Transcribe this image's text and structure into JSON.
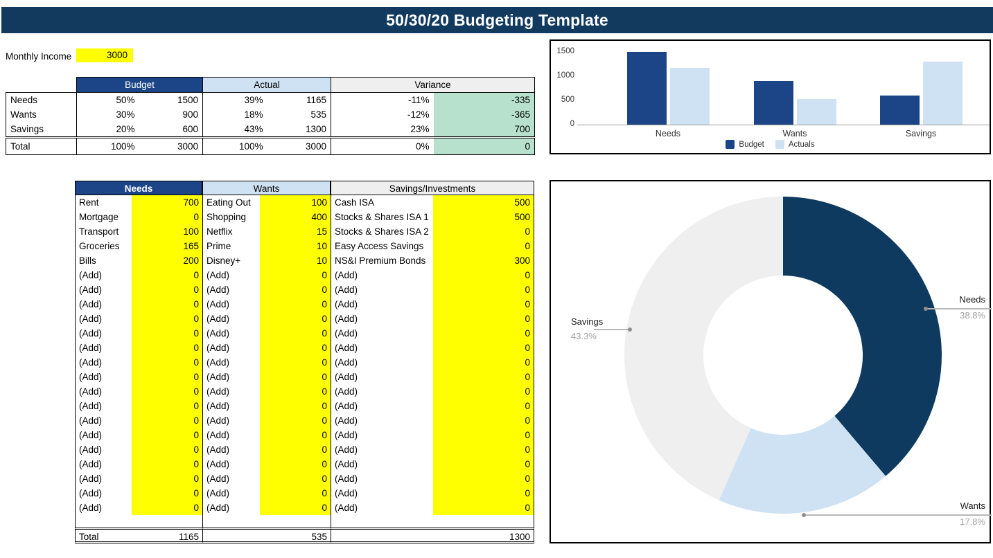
{
  "title": "50/30/20 Budgeting Template",
  "monthly_income": {
    "label": "Monthly Income",
    "value": "3000"
  },
  "summary_table": {
    "col_headers": [
      "Budget",
      "Actual",
      "Variance"
    ],
    "rows": [
      {
        "label": "Needs",
        "budget_pct": "50%",
        "budget_val": "1500",
        "actual_pct": "39%",
        "actual_val": "1165",
        "variance_pct": "-11%",
        "variance_val": "-335"
      },
      {
        "label": "Wants",
        "budget_pct": "30%",
        "budget_val": "900",
        "actual_pct": "18%",
        "actual_val": "535",
        "variance_pct": "-12%",
        "variance_val": "-365"
      },
      {
        "label": "Savings",
        "budget_pct": "20%",
        "budget_val": "600",
        "actual_pct": "43%",
        "actual_val": "1300",
        "variance_pct": "23%",
        "variance_val": "700"
      }
    ],
    "total": {
      "label": "Total",
      "budget_pct": "100%",
      "budget_val": "3000",
      "actual_pct": "100%",
      "actual_val": "3000",
      "variance_pct": "0%",
      "variance_val": "0"
    }
  },
  "detail_table": {
    "add_placeholder": "(Add)",
    "add_value": "0",
    "add_rows": 17,
    "total_label": "Total",
    "sections": [
      {
        "header": "Needs",
        "style": "navy",
        "items": [
          [
            "Rent",
            "700"
          ],
          [
            "Mortgage",
            "0"
          ],
          [
            "Transport",
            "100"
          ],
          [
            "Groceries",
            "165"
          ],
          [
            "Bills",
            "200"
          ]
        ],
        "total": "1165"
      },
      {
        "header": "Wants",
        "style": "lblue",
        "items": [
          [
            "Eating Out",
            "100"
          ],
          [
            "Shopping",
            "400"
          ],
          [
            "Netflix",
            "15"
          ],
          [
            "Prime",
            "10"
          ],
          [
            "Disney+",
            "10"
          ]
        ],
        "total": "535"
      },
      {
        "header": "Savings/Investments",
        "style": "lgray",
        "items": [
          [
            "Cash ISA",
            "500"
          ],
          [
            "Stocks & Shares ISA 1",
            "500"
          ],
          [
            "Stocks & Shares ISA 2",
            "0"
          ],
          [
            "Easy Access Savings",
            "0"
          ],
          [
            "NS&I Premium Bonds",
            "300"
          ]
        ],
        "total": "1300"
      }
    ]
  },
  "chart_data": [
    {
      "type": "bar",
      "categories": [
        "Needs",
        "Wants",
        "Savings"
      ],
      "series": [
        {
          "name": "Budget",
          "values": [
            1500,
            900,
            600
          ],
          "color": "#1c4587"
        },
        {
          "name": "Actuals",
          "values": [
            1165,
            535,
            1300
          ],
          "color": "#cfe2f3"
        }
      ],
      "ylim": [
        0,
        1500
      ],
      "yticks": [
        0,
        500,
        1000,
        1500
      ],
      "grid": false,
      "legend_position": "bottom"
    },
    {
      "type": "pie",
      "donut": true,
      "slices": [
        {
          "label": "Needs",
          "pct": 38.8,
          "color": "#0e3a5f"
        },
        {
          "label": "Wants",
          "pct": 17.8,
          "color": "#cfe2f3"
        },
        {
          "label": "Savings",
          "pct": 43.3,
          "color": "#efefef"
        }
      ]
    }
  ],
  "colors": {
    "title_navy": "#123a5f",
    "header_navy": "#1c4587",
    "light_blue": "#cfe2f3",
    "light_gray": "#efefef",
    "positive_green": "#b7e1cd",
    "input_yellow": "#ffff00"
  }
}
